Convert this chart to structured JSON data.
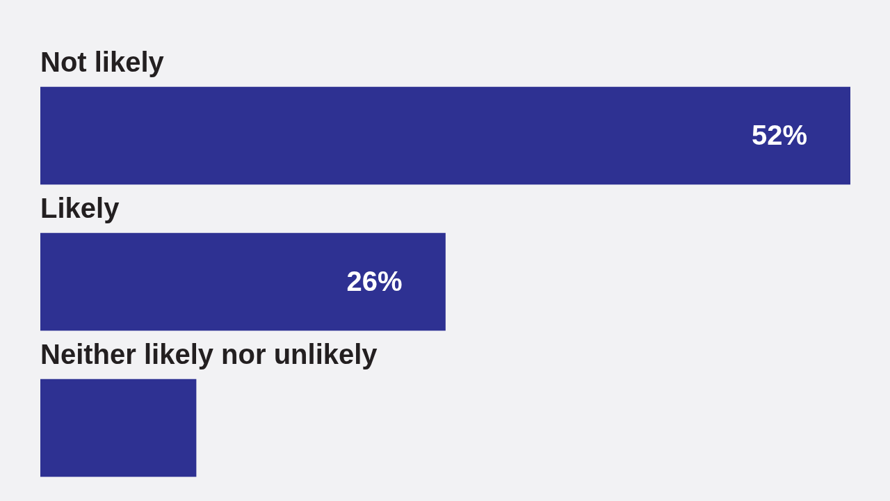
{
  "chart_data": {
    "type": "bar",
    "orientation": "horizontal",
    "categories": [
      "Not likely",
      "Likely",
      "Neither likely nor unlikely"
    ],
    "values": [
      52,
      26,
      10
    ],
    "value_labels": [
      "52%",
      "26%",
      null
    ],
    "color": "#2e3192",
    "xlim": [
      0,
      52
    ]
  }
}
